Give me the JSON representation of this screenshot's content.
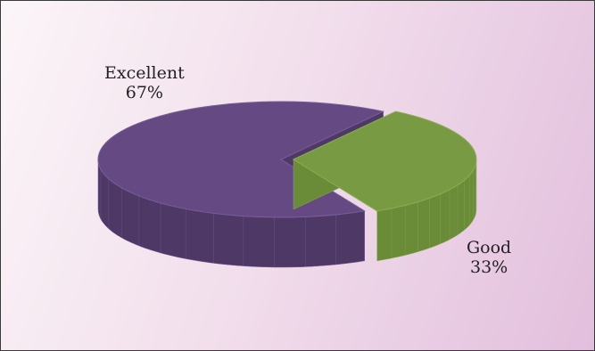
{
  "chart_data": {
    "type": "pie",
    "style": "3d-exploded",
    "categories": [
      "Excellent",
      "Good"
    ],
    "values": [
      67,
      33
    ],
    "labels": [
      "67%",
      "33%"
    ],
    "legend": "none",
    "colors": {
      "Excellent": {
        "top": "#654983",
        "side": "#4d3866",
        "edge": "#7a5e97"
      },
      "Good": {
        "top": "#789a43",
        "side": "#6a8b38",
        "edge": "#8aac52"
      }
    }
  }
}
